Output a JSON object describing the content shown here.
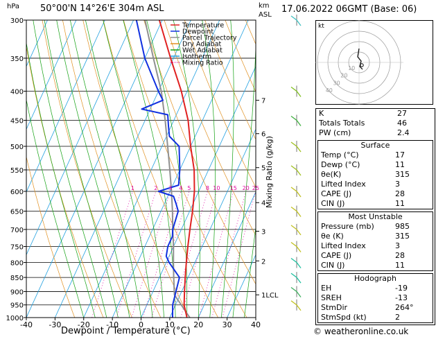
{
  "header": {
    "units_left": "hPa",
    "location": "50°00'N  14°26'E  304m  ASL",
    "units_right_line1": "km",
    "units_right_line2": "ASL",
    "datetime": "17.06.2022  06GMT  (Base: 06)"
  },
  "footer": {
    "xlabel": "Dewpoint / Temperature (°C)",
    "mixing_ratio_axis_label": "Mixing Ratio (g/kg)",
    "copyright": "© weatheronline.co.uk"
  },
  "chart_data": {
    "type": "line",
    "chart_kind": "Skew-T log-P",
    "pressure_levels": [
      300,
      350,
      400,
      450,
      500,
      550,
      600,
      650,
      700,
      750,
      800,
      850,
      900,
      950,
      1000
    ],
    "x_ticks": [
      -40,
      -30,
      -20,
      -10,
      0,
      10,
      20,
      30,
      40
    ],
    "xlim": [
      -40,
      40
    ],
    "ylim": [
      1000,
      300
    ],
    "km_ticks": [
      {
        "label": "1LCL",
        "p": 912
      },
      {
        "label": "2",
        "p": 795
      },
      {
        "label": "3",
        "p": 705
      },
      {
        "label": "4",
        "p": 628
      },
      {
        "label": "5",
        "p": 545
      },
      {
        "label": "6",
        "p": 475
      },
      {
        "label": "7",
        "p": 415
      }
    ],
    "mixing_ratio_labels": [
      "1",
      "2",
      "3",
      "4",
      "5",
      "8",
      "10",
      "15",
      "20",
      "25"
    ],
    "mixing_ratio_values": [
      1,
      2,
      3,
      4,
      5,
      8,
      10,
      15,
      20,
      25
    ],
    "legend": [
      {
        "name": "Temperature",
        "color": "#e02020"
      },
      {
        "name": "Dewpoint",
        "color": "#1030e0"
      },
      {
        "name": "Parcel Trajectory",
        "color": "#909090"
      },
      {
        "name": "Dry Adiabat",
        "color": "#e09020"
      },
      {
        "name": "Wet Adiabat",
        "color": "#10a010"
      },
      {
        "name": "Isotherm",
        "color": "#20a0e0"
      },
      {
        "name": "Mixing Ratio",
        "color": "#e000a0"
      }
    ],
    "temperature": [
      {
        "p": 1000,
        "t": 16
      },
      {
        "p": 950,
        "t": 13
      },
      {
        "p": 900,
        "t": 11
      },
      {
        "p": 850,
        "t": 9
      },
      {
        "p": 800,
        "t": 7
      },
      {
        "p": 750,
        "t": 5
      },
      {
        "p": 700,
        "t": 3
      },
      {
        "p": 650,
        "t": 1
      },
      {
        "p": 600,
        "t": -1.5
      },
      {
        "p": 550,
        "t": -5
      },
      {
        "p": 500,
        "t": -10
      },
      {
        "p": 450,
        "t": -15
      },
      {
        "p": 400,
        "t": -22
      },
      {
        "p": 350,
        "t": -31
      },
      {
        "p": 300,
        "t": -41
      }
    ],
    "dewpoint": [
      {
        "p": 1000,
        "t": 11
      },
      {
        "p": 950,
        "t": 9
      },
      {
        "p": 900,
        "t": 8
      },
      {
        "p": 850,
        "t": 7
      },
      {
        "p": 800,
        "t": 1
      },
      {
        "p": 780,
        "t": -1
      },
      {
        "p": 750,
        "t": -2
      },
      {
        "p": 720,
        "t": -2
      },
      {
        "p": 700,
        "t": -3
      },
      {
        "p": 650,
        "t": -4
      },
      {
        "p": 630,
        "t": -6
      },
      {
        "p": 612,
        "t": -8
      },
      {
        "p": 600,
        "t": -14
      },
      {
        "p": 585,
        "t": -8
      },
      {
        "p": 550,
        "t": -10
      },
      {
        "p": 500,
        "t": -14
      },
      {
        "p": 480,
        "t": -19
      },
      {
        "p": 460,
        "t": -21
      },
      {
        "p": 440,
        "t": -23
      },
      {
        "p": 430,
        "t": -33
      },
      {
        "p": 415,
        "t": -27
      },
      {
        "p": 400,
        "t": -30
      },
      {
        "p": 350,
        "t": -40
      },
      {
        "p": 300,
        "t": -49
      }
    ],
    "parcel": [
      {
        "p": 1000,
        "t": 17
      },
      {
        "p": 950,
        "t": 12
      },
      {
        "p": 912,
        "t": 8
      },
      {
        "p": 850,
        "t": 5
      },
      {
        "p": 800,
        "t": 2.5
      },
      {
        "p": 750,
        "t": 0
      },
      {
        "p": 700,
        "t": -3
      },
      {
        "p": 650,
        "t": -6
      },
      {
        "p": 600,
        "t": -9.5
      },
      {
        "p": 550,
        "t": -13.5
      },
      {
        "p": 500,
        "t": -18
      },
      {
        "p": 450,
        "t": -23
      },
      {
        "p": 400,
        "t": -29
      },
      {
        "p": 350,
        "t": -37
      },
      {
        "p": 300,
        "t": -46
      }
    ]
  },
  "indices": {
    "top": [
      {
        "label": "K",
        "value": "27"
      },
      {
        "label": "Totals Totals",
        "value": "46"
      },
      {
        "label": "PW (cm)",
        "value": "2.4"
      }
    ],
    "surface": {
      "title": "Surface",
      "rows": [
        {
          "label": "Temp (°C)",
          "value": "17"
        },
        {
          "label": "Dewp (°C)",
          "value": "11"
        },
        {
          "label": "θe(K)",
          "value": "315"
        },
        {
          "label": "Lifted Index",
          "value": "3"
        },
        {
          "label": "CAPE (J)",
          "value": "28"
        },
        {
          "label": "CIN (J)",
          "value": "11"
        }
      ]
    },
    "most_unstable": {
      "title": "Most Unstable",
      "rows": [
        {
          "label": "Pressure (mb)",
          "value": "985"
        },
        {
          "label": "θe (K)",
          "value": "315"
        },
        {
          "label": "Lifted Index",
          "value": "3"
        },
        {
          "label": "CAPE (J)",
          "value": "28"
        },
        {
          "label": "CIN (J)",
          "value": "11"
        }
      ]
    },
    "hodograph": {
      "title": "Hodograph",
      "rows": [
        {
          "label": "EH",
          "value": "-19"
        },
        {
          "label": "SREH",
          "value": "-13"
        },
        {
          "label": "StmDir",
          "value": "264°"
        },
        {
          "label": "StmSpd (kt)",
          "value": "2"
        }
      ]
    }
  },
  "hodograph_plot": {
    "unit_label": "kt",
    "ring_labels": [
      "10",
      "20",
      "30",
      "40"
    ]
  }
}
